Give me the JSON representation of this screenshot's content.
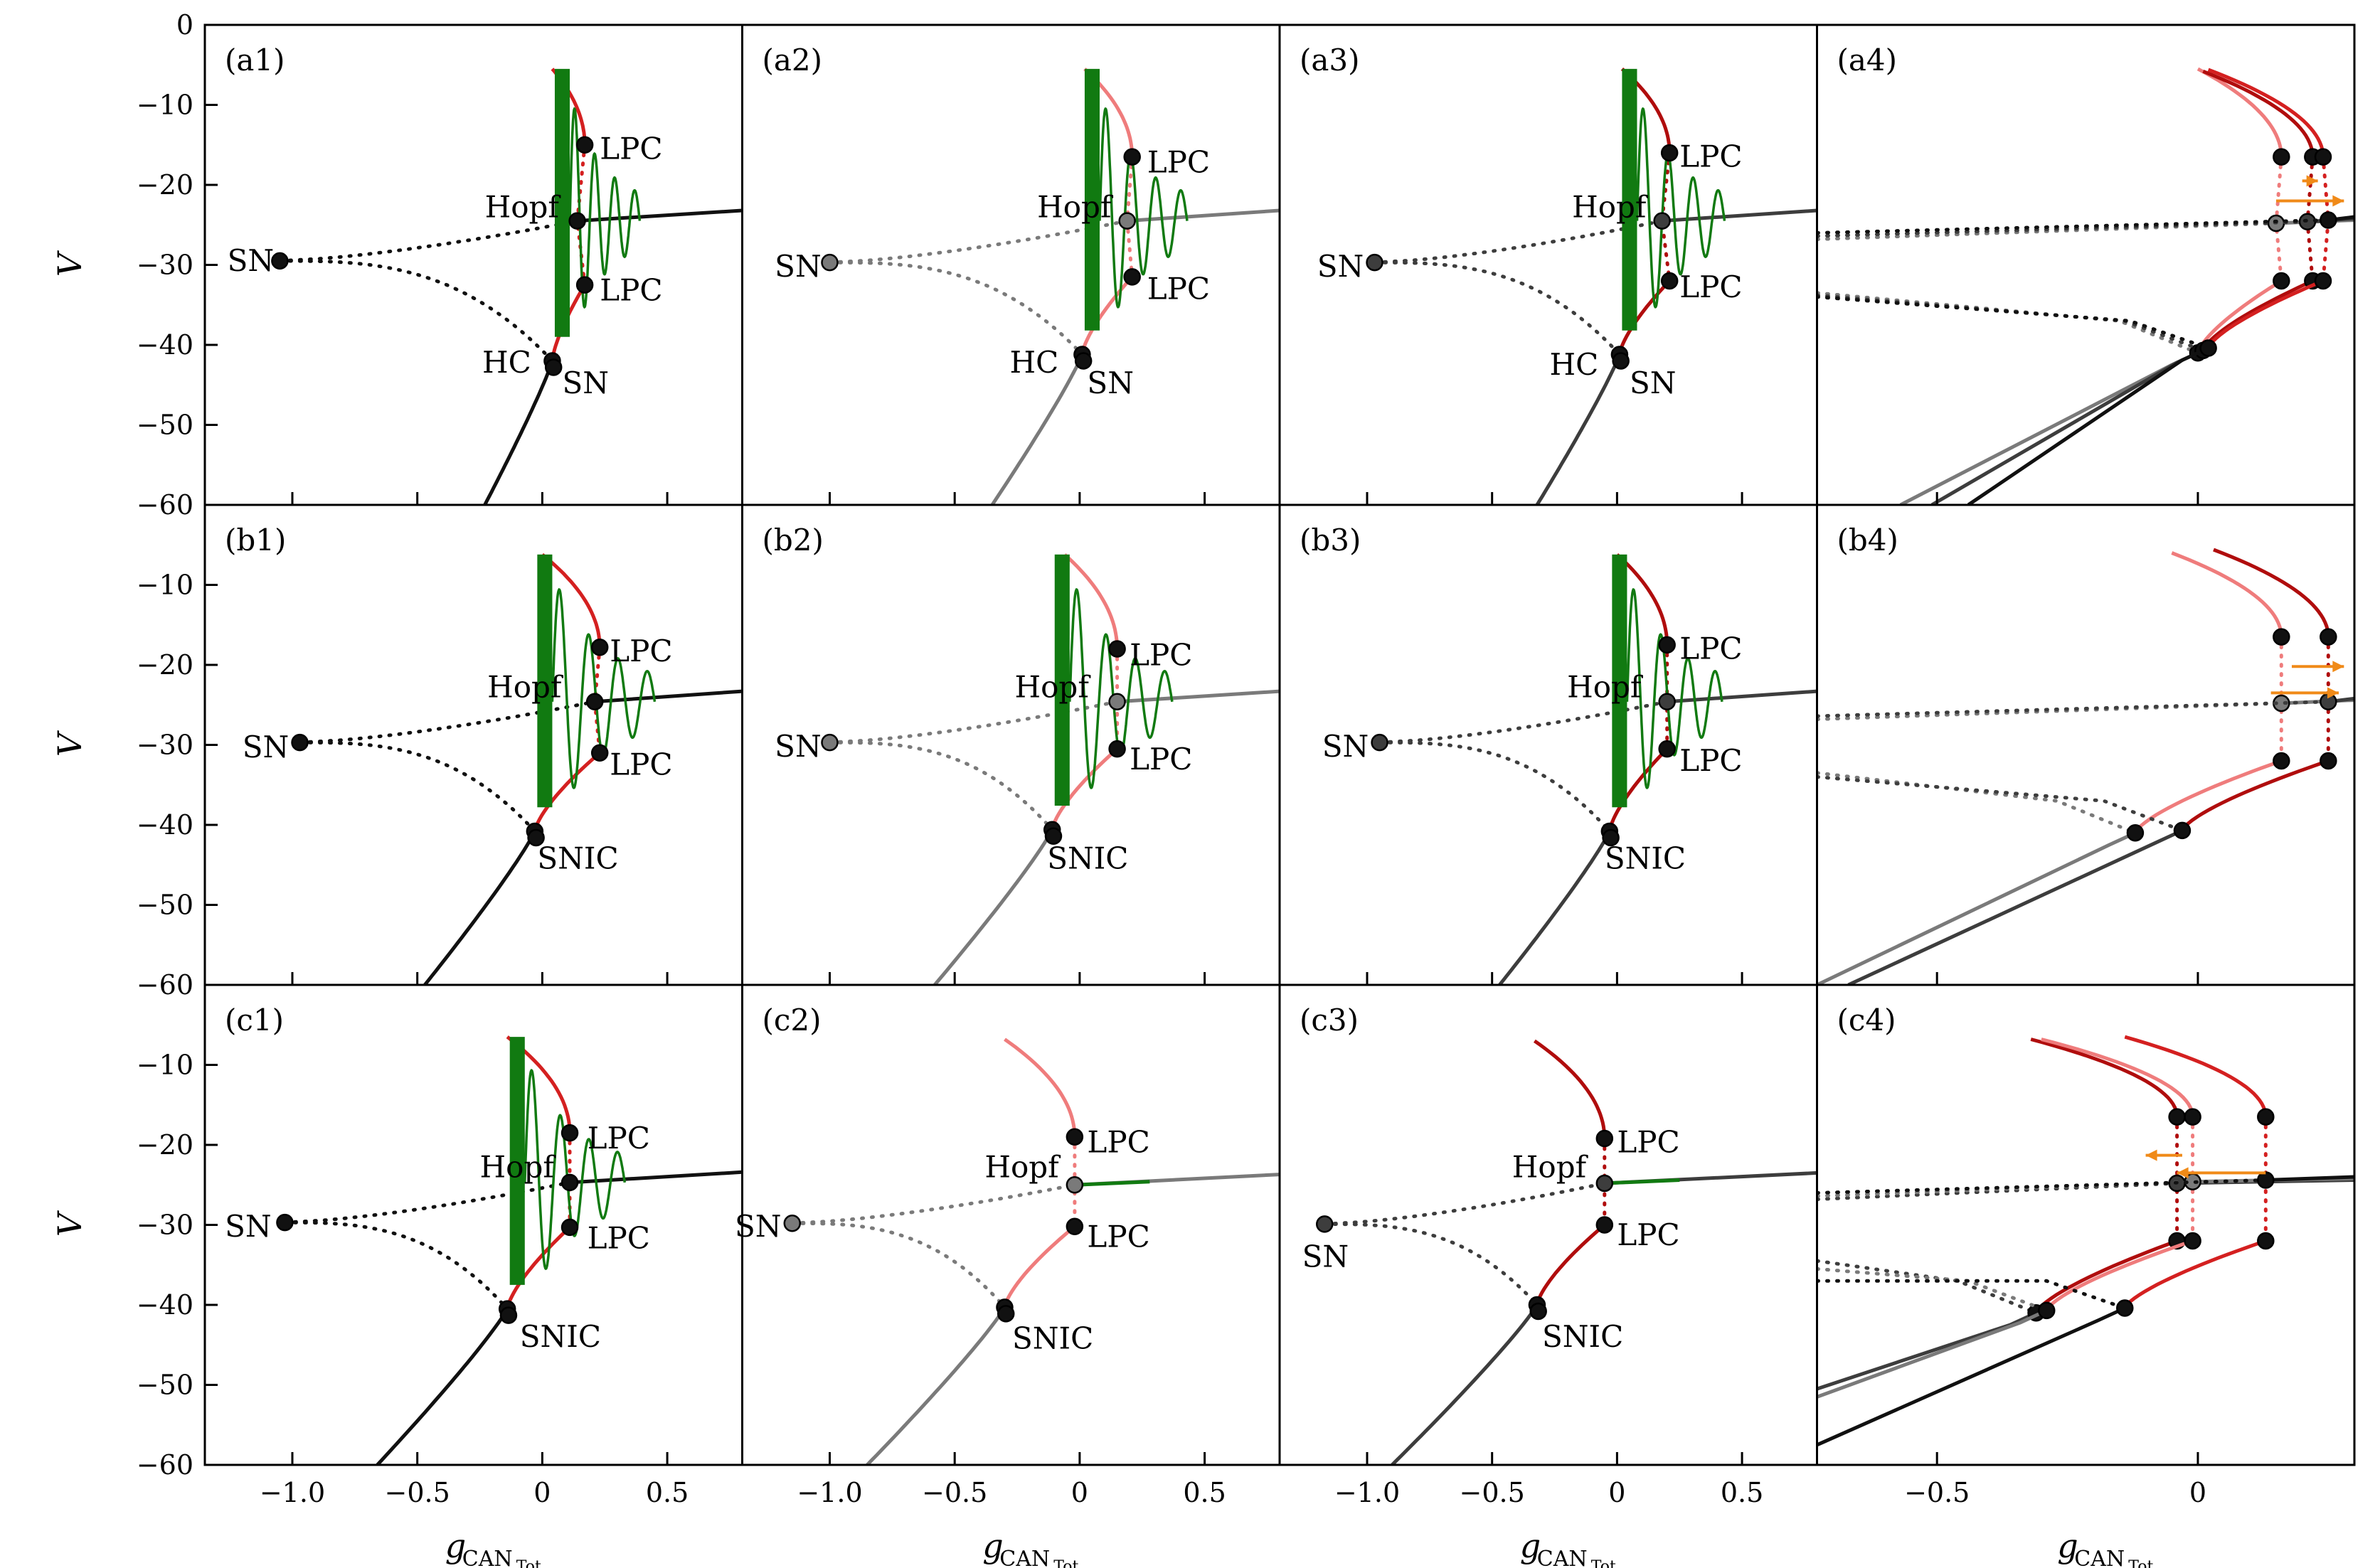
{
  "chart_data": {
    "type": "line",
    "layout": {
      "rows": 3,
      "cols": 4
    },
    "shared_y": {
      "label": "V",
      "ylim": [
        -60,
        0
      ],
      "ticks": [
        0,
        -10,
        -20,
        -30,
        -40,
        -50,
        -60
      ],
      "tick_labels": [
        "0",
        "−10",
        "−20",
        "−30",
        "−40",
        "−50",
        "−60"
      ]
    },
    "x_axes": [
      {
        "label": "g",
        "label_sub": "CAN",
        "label_subsub": "Tot",
        "xlim": [
          -1.35,
          0.8
        ],
        "ticks": [
          -1.0,
          -0.5,
          0,
          0.5
        ],
        "tick_labels": [
          "−1.0",
          "−0.5",
          "0",
          "0.5"
        ]
      },
      {
        "label": "g",
        "label_sub": "CAN",
        "label_subsub": "Tot",
        "xlim": [
          -1.35,
          0.8
        ],
        "ticks": [
          -1.0,
          -0.5,
          0,
          0.5
        ],
        "tick_labels": [
          "−1.0",
          "−0.5",
          "0",
          "0.5"
        ]
      },
      {
        "label": "g",
        "label_sub": "CAN",
        "label_subsub": "Tot",
        "xlim": [
          -1.35,
          0.8
        ],
        "ticks": [
          -1.0,
          -0.5,
          0,
          0.5
        ],
        "tick_labels": [
          "−1.0",
          "−0.5",
          "0",
          "0.5"
        ]
      },
      {
        "label": "g",
        "label_sub": "CAN",
        "label_subsub": "Tot",
        "xlim": [
          -0.73,
          0.3
        ],
        "ticks": [
          -0.5,
          0
        ],
        "tick_labels": [
          "−0.5",
          "0"
        ]
      }
    ],
    "colors": {
      "red": "#d42020",
      "dark_red": "#b00d0d",
      "pink": "#ef7c7c",
      "green": "#117a11",
      "black": "#111111",
      "dark_gray": "#3d3d3d",
      "gray": "#7a7a7a",
      "orange": "#f08a18"
    },
    "panels": [
      {
        "id": "a1",
        "label": "(a1)",
        "style": "black",
        "sn": [
          -1.05,
          -29.5
        ],
        "sn2": [
          0.04,
          -42
        ],
        "hc": [
          0.02,
          -41
        ],
        "hopf": [
          0.14,
          -24.5
        ],
        "lpc_up": [
          0.17,
          -15
        ],
        "lpc_dn": [
          0.17,
          -32.5
        ],
        "tip": [
          0.04,
          -5.5
        ],
        "curve_end": [
          -0.23,
          -60
        ],
        "green": true,
        "hc_edge": true,
        "annotations": [
          {
            "text": "SN",
            "x": -1.26,
            "y": -29.5
          },
          {
            "text": "Hopf",
            "x": -0.23,
            "y": -22.8
          },
          {
            "text": "LPC",
            "x": 0.23,
            "y": -15.5
          },
          {
            "text": "LPC",
            "x": 0.23,
            "y": -33.2
          },
          {
            "text": "HC",
            "x": -0.24,
            "y": -42.2
          },
          {
            "text": "SN",
            "x": 0.08,
            "y": -44.8
          }
        ]
      },
      {
        "id": "a2",
        "label": "(a2)",
        "style": "gray",
        "sn": [
          -1.0,
          -29.7
        ],
        "sn2": [
          0.01,
          -41.2
        ],
        "hc": [
          0.01,
          -41.2
        ],
        "hopf": [
          0.19,
          -24.5
        ],
        "lpc_up": [
          0.21,
          -16.5
        ],
        "lpc_dn": [
          0.21,
          -31.5
        ],
        "tip": [
          0.02,
          -5.5
        ],
        "curve_end": [
          -0.35,
          -60
        ],
        "green": true,
        "hc_edge": true,
        "annotations": [
          {
            "text": "SN",
            "x": -1.22,
            "y": -30.2
          },
          {
            "text": "Hopf",
            "x": -0.17,
            "y": -22.8
          },
          {
            "text": "LPC",
            "x": 0.27,
            "y": -17.2
          },
          {
            "text": "LPC",
            "x": 0.27,
            "y": -33.0
          },
          {
            "text": "HC",
            "x": -0.28,
            "y": -42.2
          },
          {
            "text": "SN",
            "x": 0.03,
            "y": -44.8
          }
        ]
      },
      {
        "id": "a3",
        "label": "(a3)",
        "style": "dark",
        "sn": [
          -0.97,
          -29.7
        ],
        "sn2": [
          0.01,
          -41.2
        ],
        "hc": [
          0.01,
          -41.2
        ],
        "hopf": [
          0.18,
          -24.5
        ],
        "lpc_up": [
          0.21,
          -16.0
        ],
        "lpc_dn": [
          0.21,
          -32.0
        ],
        "tip": [
          0.02,
          -5.5
        ],
        "curve_end": [
          -0.32,
          -60
        ],
        "green": true,
        "hc_edge": true,
        "annotations": [
          {
            "text": "SN",
            "x": -1.2,
            "y": -30.2
          },
          {
            "text": "Hopf",
            "x": -0.18,
            "y": -22.8
          },
          {
            "text": "LPC",
            "x": 0.25,
            "y": -16.5
          },
          {
            "text": "LPC",
            "x": 0.25,
            "y": -32.8
          },
          {
            "text": "HC",
            "x": -0.27,
            "y": -42.5
          },
          {
            "text": "SN",
            "x": 0.05,
            "y": -44.8
          }
        ]
      },
      {
        "id": "b1",
        "label": "(b1)",
        "style": "black",
        "sn": [
          -0.97,
          -29.7
        ],
        "sn2": [
          -0.03,
          -40.8
        ],
        "hopf": [
          0.21,
          -24.6
        ],
        "lpc_up": [
          0.23,
          -17.8
        ],
        "lpc_dn": [
          0.23,
          -31.0
        ],
        "tip": [
          0.0,
          -6.2
        ],
        "curve_end": [
          -0.47,
          -60
        ],
        "green": true,
        "annotations": [
          {
            "text": "SN",
            "x": -1.2,
            "y": -30.3
          },
          {
            "text": "Hopf",
            "x": -0.22,
            "y": -22.8
          },
          {
            "text": "LPC",
            "x": 0.27,
            "y": -18.3
          },
          {
            "text": "LPC",
            "x": 0.27,
            "y": -32.5
          },
          {
            "text": "SNIC",
            "x": -0.02,
            "y": -44.2
          }
        ]
      },
      {
        "id": "b2",
        "label": "(b2)",
        "style": "gray",
        "sn": [
          -1.0,
          -29.7
        ],
        "sn2": [
          -0.11,
          -40.6
        ],
        "hopf": [
          0.15,
          -24.6
        ],
        "lpc_up": [
          0.15,
          -18.0
        ],
        "lpc_dn": [
          0.15,
          -30.5
        ],
        "tip": [
          -0.06,
          -6.2
        ],
        "curve_end": [
          -0.58,
          -60
        ],
        "green": true,
        "annotations": [
          {
            "text": "SN",
            "x": -1.22,
            "y": -30.2
          },
          {
            "text": "Hopf",
            "x": -0.26,
            "y": -22.8
          },
          {
            "text": "LPC",
            "x": 0.2,
            "y": -18.8
          },
          {
            "text": "LPC",
            "x": 0.2,
            "y": -31.8
          },
          {
            "text": "SNIC",
            "x": -0.13,
            "y": -44.2
          }
        ]
      },
      {
        "id": "b3",
        "label": "(b3)",
        "style": "dark",
        "sn": [
          -0.95,
          -29.7
        ],
        "sn2": [
          -0.03,
          -40.8
        ],
        "hopf": [
          0.2,
          -24.6
        ],
        "lpc_up": [
          0.2,
          -17.5
        ],
        "lpc_dn": [
          0.2,
          -30.5
        ],
        "tip": [
          0.0,
          -6.2
        ],
        "curve_end": [
          -0.47,
          -60
        ],
        "green": true,
        "annotations": [
          {
            "text": "SN",
            "x": -1.18,
            "y": -30.2
          },
          {
            "text": "Hopf",
            "x": -0.2,
            "y": -22.8
          },
          {
            "text": "LPC",
            "x": 0.25,
            "y": -18.0
          },
          {
            "text": "LPC",
            "x": 0.25,
            "y": -32.0
          },
          {
            "text": "SNIC",
            "x": -0.05,
            "y": -44.2
          }
        ]
      },
      {
        "id": "c1",
        "label": "(c1)",
        "style": "black",
        "sn": [
          -1.03,
          -29.7
        ],
        "sn2": [
          -0.14,
          -40.5
        ],
        "hopf": [
          0.11,
          -24.7
        ],
        "lpc_up": [
          0.11,
          -18.5
        ],
        "lpc_dn": [
          0.11,
          -30.3
        ],
        "tip": [
          -0.14,
          -6.5
        ],
        "curve_end": [
          -0.66,
          -60
        ],
        "green": true,
        "annotations": [
          {
            "text": "SN",
            "x": -1.27,
            "y": -30.2
          },
          {
            "text": "Hopf",
            "x": -0.25,
            "y": -22.8
          },
          {
            "text": "LPC",
            "x": 0.18,
            "y": -19.2
          },
          {
            "text": "LPC",
            "x": 0.18,
            "y": -31.7
          },
          {
            "text": "SNIC",
            "x": -0.09,
            "y": -44.0
          }
        ]
      },
      {
        "id": "c2",
        "label": "(c2)",
        "style": "gray",
        "sn": [
          -1.15,
          -29.8
        ],
        "sn2": [
          -0.3,
          -40.3
        ],
        "hopf": [
          -0.02,
          -25.0
        ],
        "lpc_up": [
          -0.02,
          -19.0
        ],
        "lpc_dn": [
          -0.02,
          -30.2
        ],
        "tip": [
          -0.3,
          -6.8
        ],
        "curve_end": [
          -0.85,
          -60
        ],
        "green": false,
        "annotations": [
          {
            "text": "SN",
            "x": -1.38,
            "y": -30.2
          },
          {
            "text": "Hopf",
            "x": -0.38,
            "y": -22.8
          },
          {
            "text": "LPC",
            "x": 0.03,
            "y": -19.7
          },
          {
            "text": "LPC",
            "x": 0.03,
            "y": -31.5
          },
          {
            "text": "SNIC",
            "x": -0.27,
            "y": -44.2
          }
        ]
      },
      {
        "id": "c3",
        "label": "(c3)",
        "style": "dark",
        "sn": [
          -1.17,
          -29.9
        ],
        "sn2": [
          -0.32,
          -40.0
        ],
        "hopf": [
          -0.05,
          -24.8
        ],
        "lpc_up": [
          -0.05,
          -19.2
        ],
        "lpc_dn": [
          -0.05,
          -30.0
        ],
        "tip": [
          -0.33,
          -7.0
        ],
        "curve_end": [
          -0.9,
          -60
        ],
        "green": false,
        "annotations": [
          {
            "text": "SN",
            "x": -1.26,
            "y": -34.0
          },
          {
            "text": "Hopf",
            "x": -0.42,
            "y": -22.8
          },
          {
            "text": "LPC",
            "x": 0.0,
            "y": -19.7
          },
          {
            "text": "LPC",
            "x": 0.0,
            "y": -31.3
          },
          {
            "text": "SNIC",
            "x": -0.3,
            "y": -44.0
          }
        ]
      }
    ],
    "overlays": [
      {
        "id": "a4",
        "label": "(a4)",
        "branches": [
          {
            "style": "gray",
            "sn2x": 0.0,
            "lpcx": 0.16,
            "hopfx": 0.15,
            "tipx": 0.0,
            "tipy": -5.5,
            "lowstart": [
              -0.57,
              -60
            ],
            "leftstart": [
              -0.73,
              -33.5
            ]
          },
          {
            "style": "dark",
            "sn2x": 0.01,
            "lpcx": 0.22,
            "hopfx": 0.21,
            "tipx": 0.01,
            "tipy": -5.8,
            "lowstart": [
              -0.51,
              -60
            ],
            "leftstart": [
              -0.73,
              -33.8
            ]
          },
          {
            "style": "black",
            "sn2x": 0.02,
            "lpcx": 0.24,
            "hopfx": 0.25,
            "tipx": 0.02,
            "tipy": -5.6,
            "lowstart": [
              -0.44,
              -60
            ],
            "leftstart": [
              -0.73,
              -34.0
            ]
          }
        ],
        "arrows": [
          {
            "x1": 0.2,
            "x2": 0.23,
            "y": -19.5
          },
          {
            "x1": 0.15,
            "x2": 0.28,
            "y": -22.0
          }
        ]
      },
      {
        "id": "b4",
        "label": "(b4)",
        "branches": [
          {
            "style": "gray",
            "sn2x": -0.12,
            "lpcx": 0.16,
            "hopfx": 0.16,
            "tipx": -0.05,
            "tipy": -6.0,
            "lowstart": [
              -0.73,
              -60
            ],
            "leftstart": [
              -0.73,
              -33.5
            ]
          },
          {
            "style": "dark",
            "sn2x": -0.03,
            "lpcx": 0.25,
            "hopfx": 0.25,
            "tipx": 0.03,
            "tipy": -5.6,
            "lowstart": [
              -0.67,
              -60
            ],
            "leftstart": [
              -0.73,
              -34.0
            ]
          }
        ],
        "arrows": [
          {
            "x1": 0.18,
            "x2": 0.28,
            "y": -20.2
          },
          {
            "x1": 0.14,
            "x2": 0.27,
            "y": -23.5
          }
        ]
      },
      {
        "id": "c4",
        "label": "(c4)",
        "branches": [
          {
            "style": "dark",
            "sn2x": -0.31,
            "lpcx": -0.04,
            "hopfx": -0.04,
            "tipx": -0.32,
            "tipy": -6.8,
            "lowstart": [
              -0.73,
              -50.5
            ],
            "leftstart": [
              -0.73,
              -34.5
            ]
          },
          {
            "style": "gray",
            "sn2x": -0.29,
            "lpcx": -0.01,
            "hopfx": -0.01,
            "tipx": -0.3,
            "tipy": -6.8,
            "lowstart": [
              -0.73,
              -51.5
            ],
            "leftstart": [
              -0.73,
              -35.5
            ]
          },
          {
            "style": "black",
            "sn2x": -0.14,
            "lpcx": 0.13,
            "hopfx": 0.13,
            "tipx": -0.14,
            "tipy": -6.5,
            "lowstart": [
              -0.73,
              -57.5
            ],
            "leftstart": [
              -0.73,
              -37.0
            ]
          }
        ],
        "arrows": [
          {
            "x1": 0.13,
            "x2": -0.04,
            "y": -23.5
          },
          {
            "x1": -0.03,
            "x2": -0.1,
            "y": -21.3
          }
        ]
      }
    ]
  }
}
